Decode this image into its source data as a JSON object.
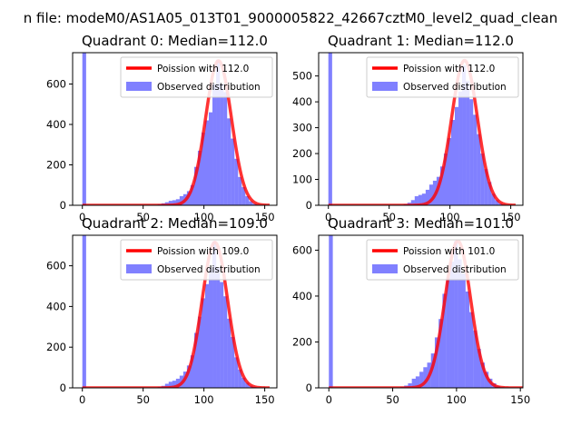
{
  "figure": {
    "suptitle": "n file: modeM0/AS1A05_013T01_9000005822_42667cztM0_level2_quad_clean"
  },
  "chart_data": [
    {
      "type": "bar",
      "title": "Quadrant 0: Median=112.0",
      "median": 112.0,
      "xlim": [
        -8,
        160
      ],
      "ylim": [
        0,
        755
      ],
      "xticks": [
        0,
        50,
        100,
        150
      ],
      "yticks": [
        0,
        200,
        400,
        600
      ],
      "legend": {
        "placement": "top-right",
        "entries": [
          "Poission with 112.0",
          "Observed distribution"
        ]
      },
      "series": [
        {
          "name": "Poission with 112.0",
          "kind": "line",
          "color": "#ff0000",
          "mean": 112.0,
          "peak": 715
        },
        {
          "name": "Observed distribution",
          "kind": "histogram",
          "color": "#8080ff",
          "bin_width": 3.1,
          "bins_x": [
            0,
            62,
            65,
            68,
            71,
            74,
            77,
            80,
            83,
            86,
            89,
            92,
            95,
            98,
            101,
            104,
            107,
            110,
            113,
            116,
            119,
            122,
            125,
            128,
            131,
            134,
            137,
            140,
            143
          ],
          "counts": [
            760,
            5,
            10,
            15,
            22,
            25,
            30,
            45,
            55,
            70,
            100,
            190,
            270,
            360,
            420,
            460,
            600,
            720,
            600,
            560,
            430,
            330,
            230,
            140,
            90,
            45,
            20,
            8,
            3
          ]
        }
      ]
    },
    {
      "type": "bar",
      "title": "Quadrant 1: Median=112.0",
      "median": 112.0,
      "xlim": [
        -8,
        160
      ],
      "ylim": [
        0,
        590
      ],
      "xticks": [
        0,
        50,
        100,
        150
      ],
      "yticks": [
        0,
        100,
        200,
        300,
        400,
        500
      ],
      "legend": {
        "placement": "top-right",
        "entries": [
          "Poission with 112.0",
          "Observed distribution"
        ]
      },
      "series": [
        {
          "name": "Poission with 112.0",
          "kind": "line",
          "color": "#ff0000",
          "mean": 112.0,
          "peak": 560
        },
        {
          "name": "Observed distribution",
          "kind": "histogram",
          "color": "#8080ff",
          "bin_width": 3.1,
          "bins_x": [
            0,
            62,
            65,
            68,
            71,
            74,
            77,
            80,
            83,
            86,
            89,
            92,
            95,
            98,
            101,
            104,
            107,
            110,
            113,
            116,
            119,
            122,
            125,
            128,
            131,
            134,
            137,
            140,
            143
          ],
          "counts": [
            600,
            5,
            10,
            20,
            35,
            40,
            45,
            60,
            80,
            95,
            110,
            150,
            200,
            260,
            330,
            380,
            440,
            540,
            480,
            410,
            350,
            275,
            200,
            140,
            90,
            45,
            20,
            8,
            3
          ]
        }
      ]
    },
    {
      "type": "bar",
      "title": "Quadrant 2: Median=109.0",
      "median": 109.0,
      "xlim": [
        -8,
        160
      ],
      "ylim": [
        0,
        750
      ],
      "xticks": [
        0,
        50,
        100,
        150
      ],
      "yticks": [
        0,
        200,
        400,
        600
      ],
      "legend": {
        "placement": "top-right",
        "entries": [
          "Poission with 109.0",
          "Observed distribution"
        ]
      },
      "series": [
        {
          "name": "Poission with 109.0",
          "kind": "line",
          "color": "#ff0000",
          "mean": 109.0,
          "peak": 715
        },
        {
          "name": "Observed distribution",
          "kind": "histogram",
          "color": "#8080ff",
          "bin_width": 3.1,
          "bins_x": [
            0,
            62,
            65,
            68,
            71,
            74,
            77,
            80,
            83,
            86,
            89,
            92,
            95,
            98,
            101,
            104,
            107,
            110,
            113,
            116,
            119,
            122,
            125,
            128,
            131,
            134,
            137,
            140,
            143
          ],
          "counts": [
            760,
            5,
            10,
            20,
            30,
            35,
            45,
            60,
            80,
            110,
            160,
            270,
            350,
            440,
            510,
            590,
            720,
            590,
            520,
            450,
            340,
            250,
            150,
            90,
            50,
            25,
            10,
            5,
            2
          ]
        }
      ]
    },
    {
      "type": "bar",
      "title": "Quadrant 3: Median=101.0",
      "median": 101.0,
      "xlim": [
        -8,
        152
      ],
      "ylim": [
        0,
        665
      ],
      "xticks": [
        0,
        50,
        100,
        150
      ],
      "yticks": [
        0,
        200,
        400,
        600
      ],
      "legend": {
        "placement": "top-right",
        "entries": [
          "Poission with 101.0",
          "Observed distribution"
        ]
      },
      "series": [
        {
          "name": "Poission with 101.0",
          "kind": "line",
          "color": "#ff0000",
          "mean": 101.0,
          "peak": 640
        },
        {
          "name": "Observed distribution",
          "kind": "histogram",
          "color": "#8080ff",
          "bin_width": 3.1,
          "bins_x": [
            0,
            56,
            59,
            62,
            65,
            68,
            71,
            74,
            77,
            80,
            83,
            86,
            89,
            92,
            95,
            98,
            101,
            104,
            107,
            110,
            113,
            116,
            119,
            122,
            125,
            128,
            131,
            134
          ],
          "counts": [
            680,
            5,
            10,
            20,
            40,
            50,
            70,
            90,
            110,
            150,
            220,
            300,
            410,
            480,
            550,
            640,
            560,
            500,
            420,
            330,
            250,
            170,
            110,
            70,
            40,
            20,
            8,
            3
          ]
        }
      ]
    }
  ]
}
